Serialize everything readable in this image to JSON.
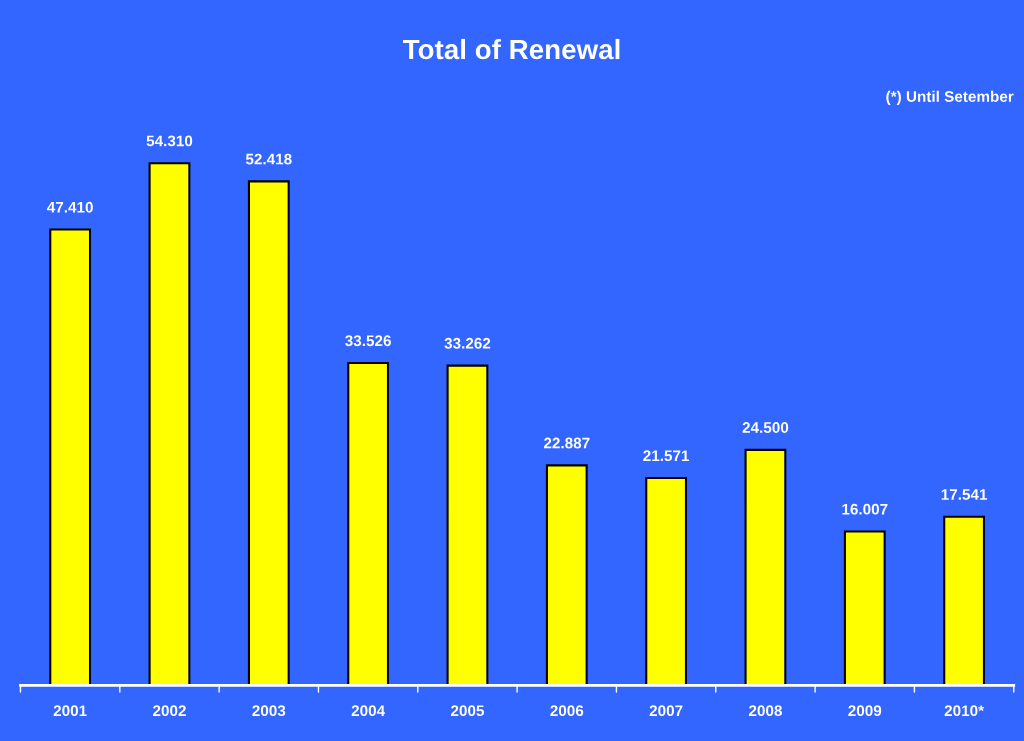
{
  "chart_data": {
    "type": "bar",
    "title": "Total of Renewal",
    "annotations": [
      "(*) Until Setember"
    ],
    "categories": [
      "2001",
      "2002",
      "2003",
      "2004",
      "2005",
      "2006",
      "2007",
      "2008",
      "2009",
      "2010*"
    ],
    "values": [
      47.41,
      54.31,
      52.418,
      33.526,
      33.262,
      22.887,
      21.571,
      24.5,
      16.007,
      17.541
    ],
    "value_labels": [
      "47.410",
      "54.310",
      "52.418",
      "33.526",
      "33.262",
      "22.887",
      "21.571",
      "24.500",
      "16.007",
      "17.541"
    ],
    "color": "#ffff00",
    "grid": false,
    "legend": false
  }
}
